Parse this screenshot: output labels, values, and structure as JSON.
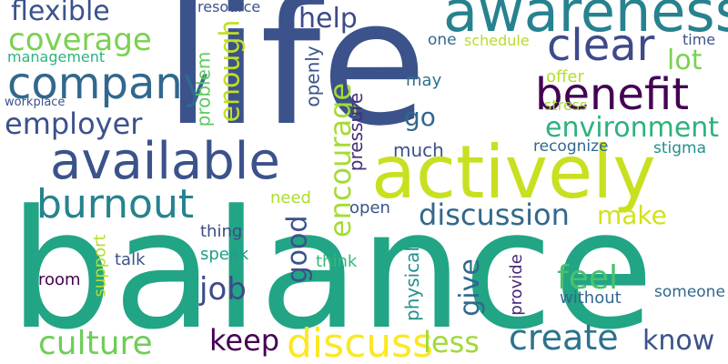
{
  "colors": {
    "background": "#ffffff",
    "palette": [
      "#3b528b",
      "#21918c",
      "#5ec962",
      "#fde725",
      "#440154",
      "#31688e",
      "#35b779",
      "#a0da39",
      "#440154"
    ]
  },
  "words": [
    {
      "text": "life",
      "color": "#3b528b"
    },
    {
      "text": "balance",
      "color": "#21a585"
    },
    {
      "text": "actively",
      "color": "#c8e020"
    },
    {
      "text": "awareness",
      "color": "#26828e"
    },
    {
      "text": "benefit",
      "color": "#440154"
    },
    {
      "text": "available",
      "color": "#3b528b"
    },
    {
      "text": "company",
      "color": "#31688e"
    },
    {
      "text": "clear",
      "color": "#3e4a89"
    },
    {
      "text": "burnout",
      "color": "#25838e"
    },
    {
      "text": "coverage",
      "color": "#7ad151"
    },
    {
      "text": "flexible",
      "color": "#3b528b"
    },
    {
      "text": "employer",
      "color": "#3b528b"
    },
    {
      "text": "enough",
      "color": "#c2df23"
    },
    {
      "text": "environment",
      "color": "#2db27d"
    },
    {
      "text": "discussion",
      "color": "#31688e"
    },
    {
      "text": "encourage",
      "color": "#a5db36"
    },
    {
      "text": "culture",
      "color": "#6ece58"
    },
    {
      "text": "discuss",
      "color": "#fde725"
    },
    {
      "text": "create",
      "color": "#2c728e"
    },
    {
      "text": "keep",
      "color": "#440154"
    },
    {
      "text": "know",
      "color": "#3b528b"
    },
    {
      "text": "less",
      "color": "#9fda3a"
    },
    {
      "text": "feel",
      "color": "#4ac16d"
    },
    {
      "text": "give",
      "color": "#31688e"
    },
    {
      "text": "job",
      "color": "#3e4a89"
    },
    {
      "text": "good",
      "color": "#3b528b"
    },
    {
      "text": "make",
      "color": "#d2e21b"
    },
    {
      "text": "help",
      "color": "#3e4a89"
    },
    {
      "text": "lot",
      "color": "#7ad151"
    },
    {
      "text": "go",
      "color": "#31688e"
    },
    {
      "text": "pressure",
      "color": "#472d7b"
    },
    {
      "text": "problem",
      "color": "#5ec962"
    },
    {
      "text": "openly",
      "color": "#3b528b"
    },
    {
      "text": "resource",
      "color": "#3b528b"
    },
    {
      "text": "management",
      "color": "#2db27d"
    },
    {
      "text": "workplace",
      "color": "#3b528b"
    },
    {
      "text": "stress",
      "color": "#a0da39"
    },
    {
      "text": "one",
      "color": "#31688e"
    },
    {
      "text": "schedule",
      "color": "#b5de2b"
    },
    {
      "text": "time",
      "color": "#3b528b"
    },
    {
      "text": "offer",
      "color": "#b5de2b"
    },
    {
      "text": "may",
      "color": "#2c728e"
    },
    {
      "text": "much",
      "color": "#3b528b"
    },
    {
      "text": "recognize",
      "color": "#31688e"
    },
    {
      "text": "stigma",
      "color": "#21918c"
    },
    {
      "text": "need",
      "color": "#addc30"
    },
    {
      "text": "thing",
      "color": "#3e4a89"
    },
    {
      "text": "speak",
      "color": "#1f9e89"
    },
    {
      "text": "open",
      "color": "#3b528b"
    },
    {
      "text": "talk",
      "color": "#3b528b"
    },
    {
      "text": "room",
      "color": "#440154"
    },
    {
      "text": "think",
      "color": "#35b779"
    },
    {
      "text": "support",
      "color": "#b5de2b"
    },
    {
      "text": "physical",
      "color": "#21918c"
    },
    {
      "text": "provide",
      "color": "#482878"
    },
    {
      "text": "without",
      "color": "#31688e"
    },
    {
      "text": "someone",
      "color": "#31688e"
    }
  ]
}
